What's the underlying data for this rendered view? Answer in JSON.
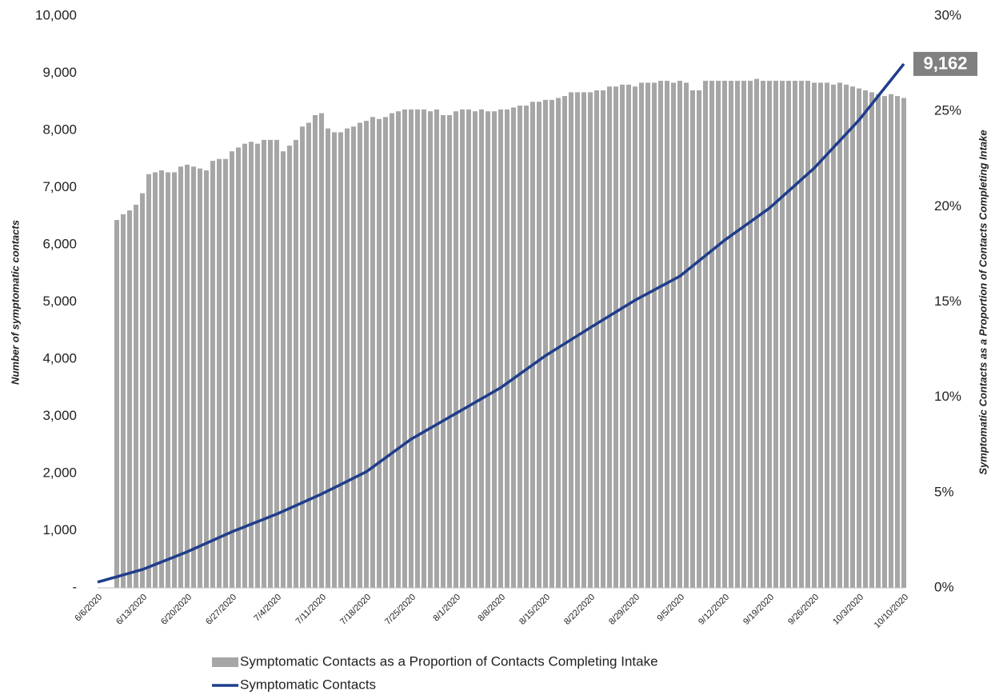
{
  "chart_data": {
    "type": "combo",
    "y_label": "Number of symptomatic contacts",
    "y2_label": "Symptomatic Contacts as a Proportion of Contacts Completing Intake",
    "categories": [
      "6/6/2020",
      null,
      null,
      null,
      null,
      null,
      null,
      "6/13/2020",
      null,
      null,
      null,
      null,
      null,
      null,
      "6/20/2020",
      null,
      null,
      null,
      null,
      null,
      null,
      "6/27/2020",
      null,
      null,
      null,
      null,
      null,
      null,
      "7/4/2020",
      null,
      null,
      null,
      null,
      null,
      null,
      "7/11/2020",
      null,
      null,
      null,
      null,
      null,
      null,
      "7/18/2020",
      null,
      null,
      null,
      null,
      null,
      null,
      "7/25/2020",
      null,
      null,
      null,
      null,
      null,
      null,
      "8/1/2020",
      null,
      null,
      null,
      null,
      null,
      null,
      "8/8/2020",
      null,
      null,
      null,
      null,
      null,
      null,
      "8/15/2020",
      null,
      null,
      null,
      null,
      null,
      null,
      "8/22/2020",
      null,
      null,
      null,
      null,
      null,
      null,
      "8/29/2020",
      null,
      null,
      null,
      null,
      null,
      null,
      "9/5/2020",
      null,
      null,
      null,
      null,
      null,
      null,
      "9/12/2020",
      null,
      null,
      null,
      null,
      null,
      null,
      "9/19/2020",
      null,
      null,
      null,
      null,
      null,
      null,
      "9/26/2020",
      null,
      null,
      null,
      null,
      null,
      null,
      "10/3/2020",
      null,
      null,
      null,
      null,
      null,
      null,
      "10/10/2020"
    ],
    "series": [
      {
        "name": "Symptomatic Contacts as a Proportion of Contacts Completing Intake",
        "type": "bar",
        "axis": "y2",
        "color": "#a6a6a6",
        "values": [
          null,
          null,
          null,
          19.3,
          19.6,
          19.8,
          20.1,
          20.7,
          21.7,
          21.8,
          21.9,
          21.8,
          21.8,
          22.1,
          22.2,
          22.1,
          22.0,
          21.9,
          22.4,
          22.5,
          22.5,
          22.9,
          23.1,
          23.3,
          23.4,
          23.3,
          23.5,
          23.5,
          23.5,
          22.9,
          23.2,
          23.5,
          24.2,
          24.4,
          24.8,
          24.9,
          24.1,
          23.9,
          23.9,
          24.1,
          24.2,
          24.4,
          24.5,
          24.7,
          24.6,
          24.7,
          24.9,
          25.0,
          25.1,
          25.1,
          25.1,
          25.1,
          25.0,
          25.1,
          24.8,
          24.8,
          25.0,
          25.1,
          25.1,
          25.0,
          25.1,
          25.0,
          25.0,
          25.1,
          25.1,
          25.2,
          25.3,
          25.3,
          25.5,
          25.5,
          25.6,
          25.6,
          25.7,
          25.8,
          26.0,
          26.0,
          26.0,
          26.0,
          26.1,
          26.1,
          26.3,
          26.3,
          26.4,
          26.4,
          26.3,
          26.5,
          26.5,
          26.5,
          26.6,
          26.6,
          26.5,
          26.6,
          26.5,
          26.1,
          26.1,
          26.6,
          26.6,
          26.6,
          26.6,
          26.6,
          26.6,
          26.6,
          26.6,
          26.7,
          26.6,
          26.6,
          26.6,
          26.6,
          26.6,
          26.6,
          26.6,
          26.6,
          26.5,
          26.5,
          26.5,
          26.4,
          26.5,
          26.4,
          26.3,
          26.2,
          26.1,
          26.0,
          25.9,
          25.8,
          25.9,
          25.8,
          25.7
        ]
      },
      {
        "name": "Symptomatic Contacts",
        "type": "line",
        "color": "#1f3d8c",
        "values": [
          100,
          131,
          163,
          194,
          226,
          257,
          289,
          320,
          364,
          409,
          453,
          497,
          541,
          586,
          630,
          680,
          730,
          780,
          830,
          880,
          930,
          980,
          1024,
          1069,
          1113,
          1157,
          1201,
          1246,
          1290,
          1340,
          1390,
          1440,
          1490,
          1540,
          1590,
          1640,
          1696,
          1751,
          1807,
          1863,
          1919,
          1974,
          2030,
          2111,
          2193,
          2274,
          2356,
          2437,
          2519,
          2600,
          2664,
          2729,
          2793,
          2857,
          2921,
          2986,
          3050,
          3114,
          3179,
          3243,
          3307,
          3371,
          3436,
          3500,
          3580,
          3660,
          3740,
          3820,
          3900,
          3980,
          4060,
          4130,
          4200,
          4270,
          4340,
          4410,
          4480,
          4550,
          4619,
          4687,
          4756,
          4824,
          4893,
          4961,
          5030,
          5090,
          5150,
          5210,
          5270,
          5330,
          5390,
          5450,
          5540,
          5630,
          5720,
          5810,
          5900,
          5990,
          6080,
          6160,
          6240,
          6320,
          6400,
          6480,
          6560,
          6640,
          6740,
          6840,
          6940,
          7040,
          7140,
          7240,
          7340,
          7460,
          7580,
          7700,
          7820,
          7940,
          8060,
          8180,
          8320,
          8461,
          8601,
          8741,
          8881,
          9022,
          9162
        ],
        "value_labels": [
          null,
          null,
          null,
          null,
          null,
          null,
          null,
          null,
          null,
          null,
          null,
          null,
          null,
          null,
          null,
          null,
          null,
          null,
          null,
          null,
          null,
          null,
          null,
          null,
          null,
          null,
          null,
          null,
          null,
          null,
          null,
          null,
          null,
          null,
          null,
          null,
          null,
          null,
          null,
          null,
          null,
          null,
          null,
          null,
          null,
          null,
          null,
          null,
          null,
          null,
          null,
          null,
          null,
          null,
          null,
          null,
          null,
          null,
          null,
          null,
          null,
          null,
          null,
          null,
          null,
          null,
          null,
          null,
          null,
          null,
          null,
          null,
          null,
          null,
          null,
          null,
          null,
          null,
          null,
          null,
          null,
          null,
          null,
          null,
          null,
          null,
          null,
          null,
          null,
          null,
          null,
          null,
          null,
          null,
          null,
          null,
          null,
          null,
          null,
          null,
          null,
          null,
          null,
          null,
          null,
          null,
          null,
          null,
          null,
          null,
          null,
          null,
          null,
          null,
          null,
          null,
          null,
          null,
          null,
          null,
          null,
          null,
          null,
          null,
          null,
          null,
          "9,162"
        ]
      }
    ],
    "ylim": [
      0,
      10000
    ],
    "yticks": [
      {
        "value": 0,
        "label": "-"
      },
      {
        "value": 1000,
        "label": "1,000"
      },
      {
        "value": 2000,
        "label": "2,000"
      },
      {
        "value": 3000,
        "label": "3,000"
      },
      {
        "value": 4000,
        "label": "4,000"
      },
      {
        "value": 5000,
        "label": "5,000"
      },
      {
        "value": 6000,
        "label": "6,000"
      },
      {
        "value": 7000,
        "label": "7,000"
      },
      {
        "value": 8000,
        "label": "8,000"
      },
      {
        "value": 9000,
        "label": "9,000"
      },
      {
        "value": 10000,
        "label": "10,000"
      }
    ],
    "y2lim": [
      0,
      30
    ],
    "y2ticks": [
      {
        "value": 0,
        "label": "0%"
      },
      {
        "value": 5,
        "label": "5%"
      },
      {
        "value": 10,
        "label": "10%"
      },
      {
        "value": 15,
        "label": "15%"
      },
      {
        "value": 20,
        "label": "20%"
      },
      {
        "value": 25,
        "label": "25%"
      },
      {
        "value": 30,
        "label": "30%"
      }
    ],
    "grid": false,
    "legend": "bottom"
  }
}
